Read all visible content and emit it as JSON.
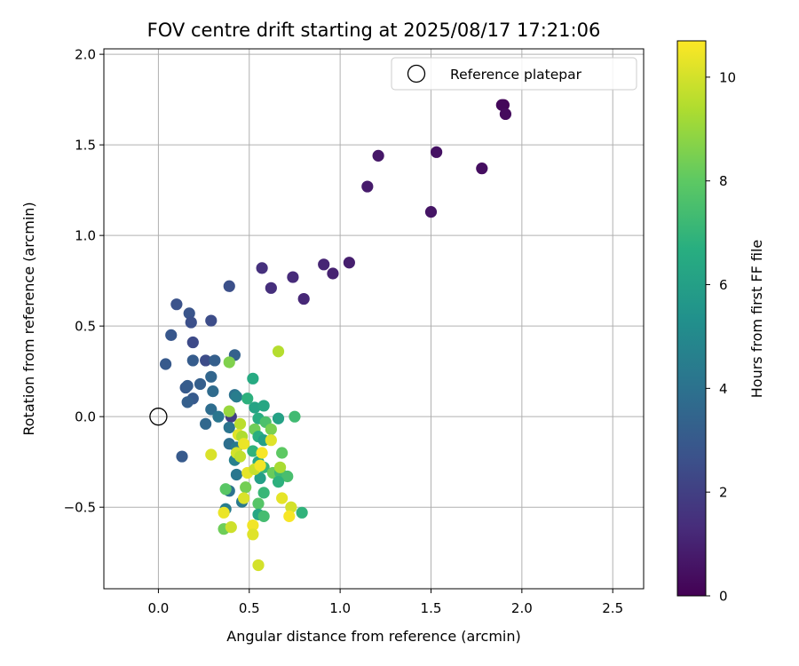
{
  "chart_data": {
    "type": "scatter",
    "title": "FOV centre drift starting at 2025/08/17 17:21:06",
    "xlabel": "Angular distance from reference (arcmin)",
    "ylabel": "Rotation from reference (arcmin)",
    "xlim": [
      -0.3,
      2.67
    ],
    "ylim": [
      -0.95,
      2.03
    ],
    "xticks": [
      0.0,
      0.5,
      1.0,
      1.5,
      2.0,
      2.5
    ],
    "xtick_labels": [
      "0.0",
      "0.5",
      "1.0",
      "1.5",
      "2.0",
      "2.5"
    ],
    "yticks": [
      -0.5,
      0.0,
      0.5,
      1.0,
      1.5,
      2.0
    ],
    "ytick_labels": [
      "−0.5",
      "0.0",
      "0.5",
      "1.0",
      "1.5",
      "2.0"
    ],
    "grid": true,
    "colorbar": {
      "label": "Hours from first FF file",
      "colormap": "viridis",
      "range": [
        0,
        10.7
      ],
      "ticks": [
        0,
        2,
        4,
        6,
        8,
        10
      ],
      "tick_labels": [
        "0",
        "2",
        "4",
        "6",
        "8",
        "10"
      ]
    },
    "legend": {
      "position": "top-right",
      "entries": [
        "Reference platepar"
      ]
    },
    "reference_point": {
      "x": 0.0,
      "y": 0.0
    },
    "points": [
      {
        "x": 1.9,
        "y": 1.72,
        "c": 0.1
      },
      {
        "x": 1.89,
        "y": 1.72,
        "c": 0.2
      },
      {
        "x": 1.91,
        "y": 1.67,
        "c": 0.3
      },
      {
        "x": 1.78,
        "y": 1.37,
        "c": 0.4
      },
      {
        "x": 1.53,
        "y": 1.46,
        "c": 0.5
      },
      {
        "x": 1.5,
        "y": 1.13,
        "c": 0.6
      },
      {
        "x": 1.21,
        "y": 1.44,
        "c": 0.7
      },
      {
        "x": 1.15,
        "y": 1.27,
        "c": 0.8
      },
      {
        "x": 1.05,
        "y": 0.85,
        "c": 0.9
      },
      {
        "x": 0.96,
        "y": 0.79,
        "c": 1.0
      },
      {
        "x": 0.91,
        "y": 0.84,
        "c": 1.1
      },
      {
        "x": 0.8,
        "y": 0.65,
        "c": 1.2
      },
      {
        "x": 0.74,
        "y": 0.77,
        "c": 1.3
      },
      {
        "x": 0.62,
        "y": 0.71,
        "c": 1.4
      },
      {
        "x": 0.57,
        "y": 0.82,
        "c": 1.5
      },
      {
        "x": 0.39,
        "y": 0.72,
        "c": 2.6
      },
      {
        "x": 0.1,
        "y": 0.62,
        "c": 2.7
      },
      {
        "x": 0.17,
        "y": 0.57,
        "c": 2.8
      },
      {
        "x": 0.18,
        "y": 0.52,
        "c": 2.6
      },
      {
        "x": 0.29,
        "y": 0.53,
        "c": 2.5
      },
      {
        "x": 0.07,
        "y": 0.45,
        "c": 2.9
      },
      {
        "x": 0.19,
        "y": 0.41,
        "c": 2.4
      },
      {
        "x": 0.04,
        "y": 0.29,
        "c": 3.0
      },
      {
        "x": 0.19,
        "y": 0.31,
        "c": 3.1
      },
      {
        "x": 0.26,
        "y": 0.31,
        "c": 2.5
      },
      {
        "x": 0.31,
        "y": 0.31,
        "c": 3.2
      },
      {
        "x": 0.42,
        "y": 0.34,
        "c": 3.3
      },
      {
        "x": 0.29,
        "y": 0.22,
        "c": 3.5
      },
      {
        "x": 0.23,
        "y": 0.18,
        "c": 3.2
      },
      {
        "x": 0.15,
        "y": 0.16,
        "c": 3.0
      },
      {
        "x": 0.16,
        "y": 0.17,
        "c": 3.1
      },
      {
        "x": 0.3,
        "y": 0.14,
        "c": 3.7
      },
      {
        "x": 0.19,
        "y": 0.1,
        "c": 3.0
      },
      {
        "x": 0.16,
        "y": 0.08,
        "c": 3.2
      },
      {
        "x": 0.42,
        "y": 0.12,
        "c": 4.0
      },
      {
        "x": 0.43,
        "y": 0.11,
        "c": 4.5
      },
      {
        "x": 0.29,
        "y": 0.04,
        "c": 3.8
      },
      {
        "x": 0.33,
        "y": 0.0,
        "c": 4.2
      },
      {
        "x": 0.4,
        "y": 0.0,
        "c": 2.0
      },
      {
        "x": 0.26,
        "y": -0.04,
        "c": 3.6
      },
      {
        "x": 0.39,
        "y": -0.06,
        "c": 4.1
      },
      {
        "x": 0.13,
        "y": -0.22,
        "c": 3.0
      },
      {
        "x": 0.39,
        "y": -0.15,
        "c": 3.9
      },
      {
        "x": 0.43,
        "y": -0.17,
        "c": 4.3
      },
      {
        "x": 0.42,
        "y": -0.24,
        "c": 4.6
      },
      {
        "x": 0.43,
        "y": -0.32,
        "c": 4.2
      },
      {
        "x": 0.39,
        "y": -0.41,
        "c": 4.0
      },
      {
        "x": 0.37,
        "y": -0.51,
        "c": 4.5
      },
      {
        "x": 0.46,
        "y": -0.47,
        "c": 4.3
      },
      {
        "x": 0.52,
        "y": 0.21,
        "c": 6.5
      },
      {
        "x": 0.49,
        "y": 0.1,
        "c": 6.8
      },
      {
        "x": 0.53,
        "y": 0.05,
        "c": 6.2
      },
      {
        "x": 0.58,
        "y": 0.06,
        "c": 6.3
      },
      {
        "x": 0.55,
        "y": -0.01,
        "c": 6.6
      },
      {
        "x": 0.66,
        "y": -0.01,
        "c": 6.1
      },
      {
        "x": 0.75,
        "y": 0.0,
        "c": 7.3
      },
      {
        "x": 0.59,
        "y": -0.03,
        "c": 7.6
      },
      {
        "x": 0.53,
        "y": -0.07,
        "c": 8.3
      },
      {
        "x": 0.62,
        "y": -0.07,
        "c": 8.5
      },
      {
        "x": 0.55,
        "y": -0.11,
        "c": 6.7
      },
      {
        "x": 0.58,
        "y": -0.13,
        "c": 6.0
      },
      {
        "x": 0.52,
        "y": -0.19,
        "c": 6.9
      },
      {
        "x": 0.68,
        "y": -0.2,
        "c": 8.0
      },
      {
        "x": 0.55,
        "y": -0.25,
        "c": 6.4
      },
      {
        "x": 0.58,
        "y": -0.28,
        "c": 7.0
      },
      {
        "x": 0.63,
        "y": -0.31,
        "c": 8.2
      },
      {
        "x": 0.67,
        "y": -0.31,
        "c": 7.2
      },
      {
        "x": 0.71,
        "y": -0.33,
        "c": 7.5
      },
      {
        "x": 0.56,
        "y": -0.34,
        "c": 6.0
      },
      {
        "x": 0.66,
        "y": -0.36,
        "c": 6.8
      },
      {
        "x": 0.48,
        "y": -0.39,
        "c": 8.4
      },
      {
        "x": 0.58,
        "y": -0.42,
        "c": 7.1
      },
      {
        "x": 0.55,
        "y": -0.48,
        "c": 7.8
      },
      {
        "x": 0.55,
        "y": -0.54,
        "c": 6.3
      },
      {
        "x": 0.58,
        "y": -0.55,
        "c": 7.4
      },
      {
        "x": 0.79,
        "y": -0.53,
        "c": 6.9
      },
      {
        "x": 0.37,
        "y": -0.4,
        "c": 7.9
      },
      {
        "x": 0.36,
        "y": -0.62,
        "c": 8.3
      },
      {
        "x": 0.39,
        "y": 0.3,
        "c": 8.6
      },
      {
        "x": 0.39,
        "y": 0.03,
        "c": 9.0
      },
      {
        "x": 0.45,
        "y": -0.04,
        "c": 9.6
      },
      {
        "x": 0.44,
        "y": -0.1,
        "c": 10.2
      },
      {
        "x": 0.46,
        "y": -0.11,
        "c": 9.4
      },
      {
        "x": 0.43,
        "y": -0.2,
        "c": 10.0
      },
      {
        "x": 0.45,
        "y": -0.22,
        "c": 9.7
      },
      {
        "x": 0.47,
        "y": -0.15,
        "c": 10.4
      },
      {
        "x": 0.29,
        "y": -0.21,
        "c": 10.1
      },
      {
        "x": 0.49,
        "y": -0.31,
        "c": 10.3
      },
      {
        "x": 0.53,
        "y": -0.29,
        "c": 9.8
      },
      {
        "x": 0.56,
        "y": -0.27,
        "c": 10.5
      },
      {
        "x": 0.57,
        "y": -0.2,
        "c": 10.6
      },
      {
        "x": 0.62,
        "y": -0.13,
        "c": 10.2
      },
      {
        "x": 0.67,
        "y": -0.28,
        "c": 9.3
      },
      {
        "x": 0.68,
        "y": -0.45,
        "c": 10.3
      },
      {
        "x": 0.73,
        "y": -0.5,
        "c": 10.0
      },
      {
        "x": 0.72,
        "y": -0.55,
        "c": 10.6
      },
      {
        "x": 0.47,
        "y": -0.45,
        "c": 10.1
      },
      {
        "x": 0.36,
        "y": -0.53,
        "c": 10.4
      },
      {
        "x": 0.4,
        "y": -0.61,
        "c": 9.9
      },
      {
        "x": 0.52,
        "y": -0.6,
        "c": 10.5
      },
      {
        "x": 0.52,
        "y": -0.65,
        "c": 10.2
      },
      {
        "x": 0.55,
        "y": -0.82,
        "c": 10.0
      },
      {
        "x": 0.66,
        "y": 0.36,
        "c": 9.5
      }
    ]
  }
}
